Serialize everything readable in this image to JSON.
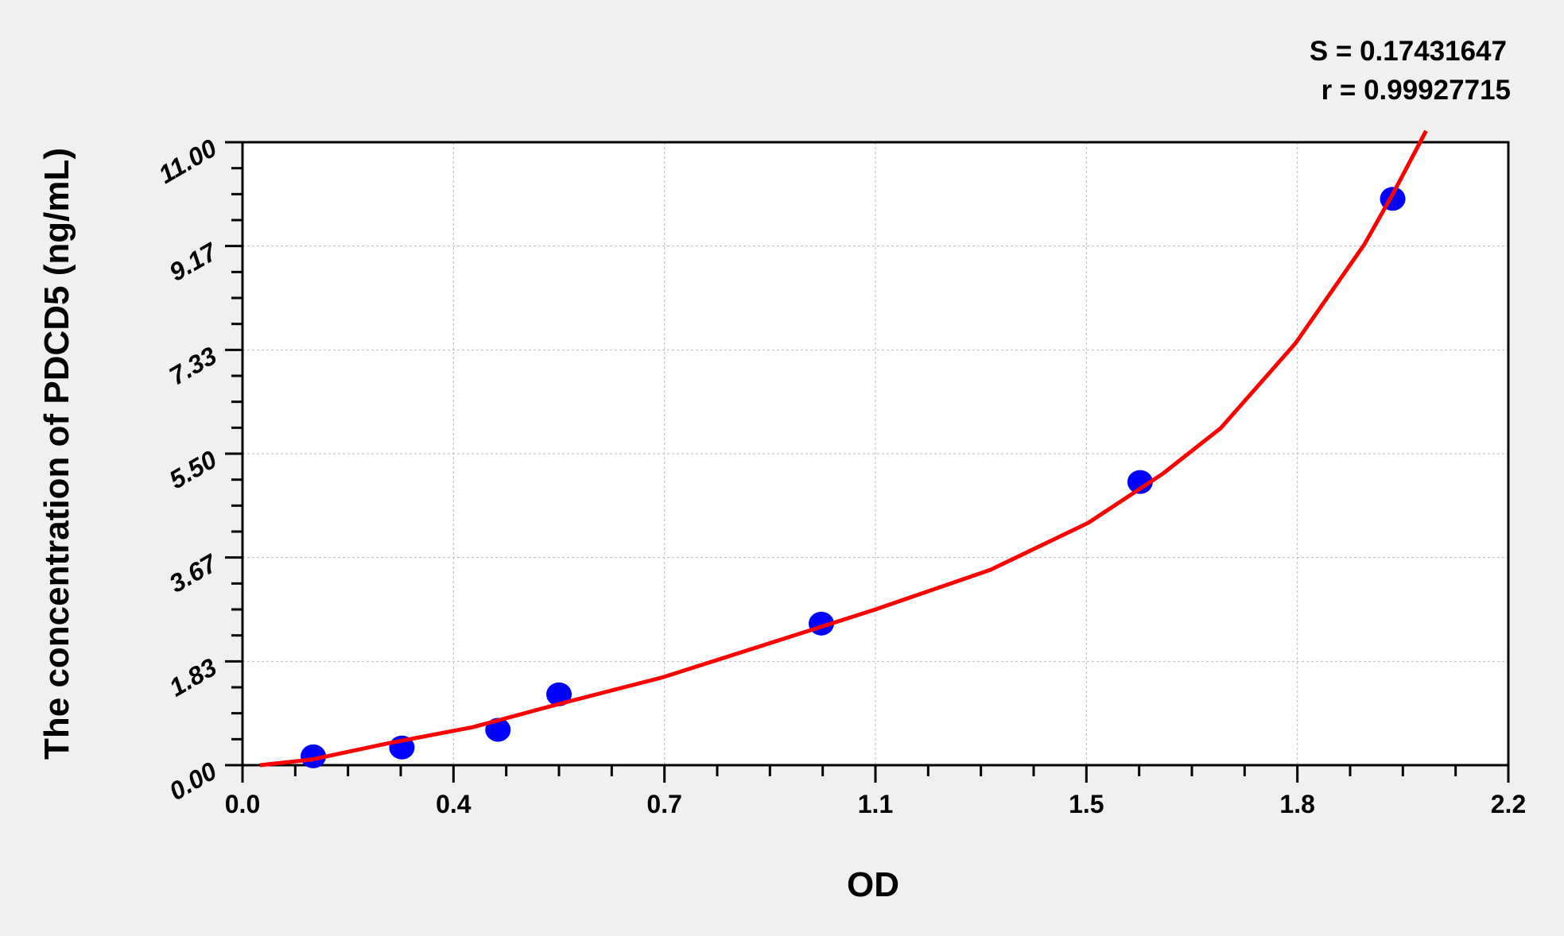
{
  "chart_data": {
    "type": "scatter",
    "title": "",
    "xlabel": "OD",
    "ylabel": "The concentration of PDCD5 (ng/mL)",
    "xlim": [
      0,
      2.2
    ],
    "ylim": [
      0,
      11
    ],
    "x_ticks": [
      "0.0",
      "0.4",
      "0.7",
      "1.1",
      "1.5",
      "1.8",
      "2.2"
    ],
    "y_ticks": [
      "0.00",
      "1.83",
      "3.67",
      "5.50",
      "7.33",
      "9.17",
      "11.00"
    ],
    "grid": true,
    "stats": {
      "s": "S = 0.17431647",
      "r": "r = 0.99927715"
    },
    "points": {
      "x": [
        0.123,
        0.277,
        0.444,
        0.55,
        1.006,
        1.56,
        1.999
      ],
      "y": [
        0.156,
        0.3125,
        0.625,
        1.25,
        2.5,
        5.0,
        10.0
      ],
      "color": "#0000ff"
    },
    "fit_curve": {
      "x": [
        0.03,
        0.12,
        0.25,
        0.4,
        0.55,
        0.73,
        0.9,
        1.1,
        1.3,
        1.47,
        1.6,
        1.7,
        1.83,
        1.95,
        2.0,
        2.057
      ],
      "y": [
        0.0,
        0.1,
        0.38,
        0.67,
        1.08,
        1.55,
        2.1,
        2.75,
        3.45,
        4.28,
        5.15,
        5.95,
        7.45,
        9.2,
        10.1,
        11.2
      ],
      "color": "#ff0000"
    }
  }
}
